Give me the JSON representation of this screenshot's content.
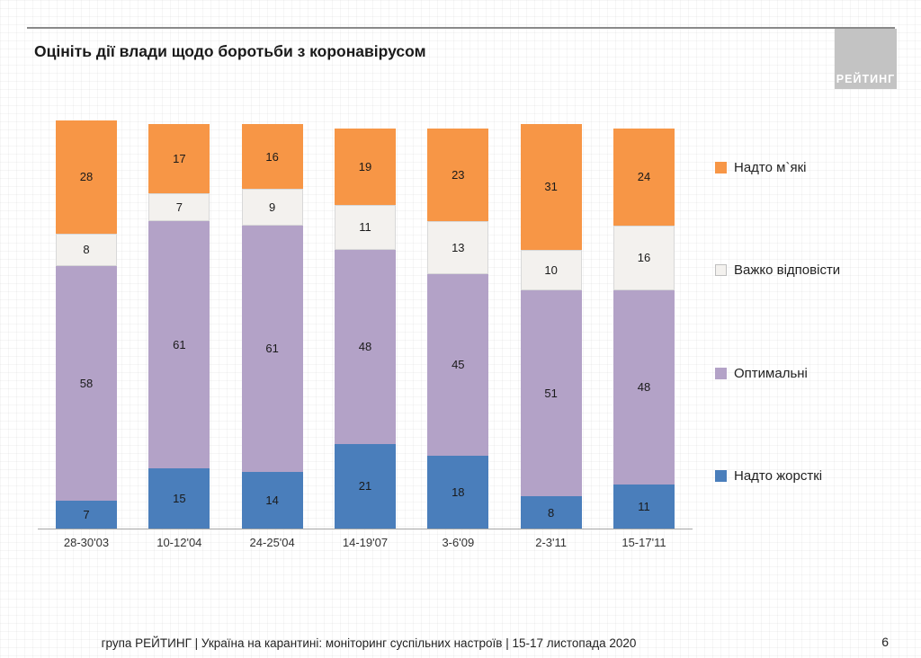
{
  "page": {
    "title": "Оцініть дії влади щодо боротьби з коронавірусом",
    "logo": "РЕЙТИНГ",
    "footer": "група РЕЙТИНГ | Україна на карантині: моніторинг суспільних настроїв | 15-17 листопада 2020",
    "page_number": "6"
  },
  "chart_data": {
    "type": "bar",
    "stacked": true,
    "title": "Оцініть дії влади щодо боротьби з коронавірусом",
    "xlabel": "",
    "ylabel": "",
    "ylim": [
      0,
      101
    ],
    "grid": false,
    "legend_position": "right",
    "categories": [
      "28-30'03",
      "10-12'04",
      "24-25'04",
      "14-19'07",
      "3-6'09",
      "2-3'11",
      "15-17'11"
    ],
    "series": [
      {
        "name": "Надто жорсткі",
        "color": "#4a7ebb",
        "outline": "",
        "values": [
          7,
          15,
          14,
          21,
          18,
          8,
          11
        ]
      },
      {
        "name": "Оптимальні",
        "color": "#b3a2c7",
        "outline": "",
        "values": [
          58,
          61,
          61,
          48,
          45,
          51,
          48
        ]
      },
      {
        "name": "Важко відповісти",
        "color": "#f3f1ee",
        "outline": "#d8d8d8",
        "values": [
          8,
          7,
          9,
          11,
          13,
          10,
          16
        ]
      },
      {
        "name": "Надто м`які",
        "color": "#f79646",
        "outline": "",
        "values": [
          28,
          17,
          16,
          19,
          23,
          31,
          24
        ]
      }
    ],
    "legend": [
      {
        "label": "Надто м`які",
        "color": "#f79646",
        "outline": ""
      },
      {
        "label": "Важко відповісти",
        "color": "#f3f1ee",
        "outline": "#bfbfbf"
      },
      {
        "label": "Оптимальні",
        "color": "#b3a2c7",
        "outline": ""
      },
      {
        "label": "Надто жорсткі",
        "color": "#4a7ebb",
        "outline": ""
      }
    ]
  }
}
